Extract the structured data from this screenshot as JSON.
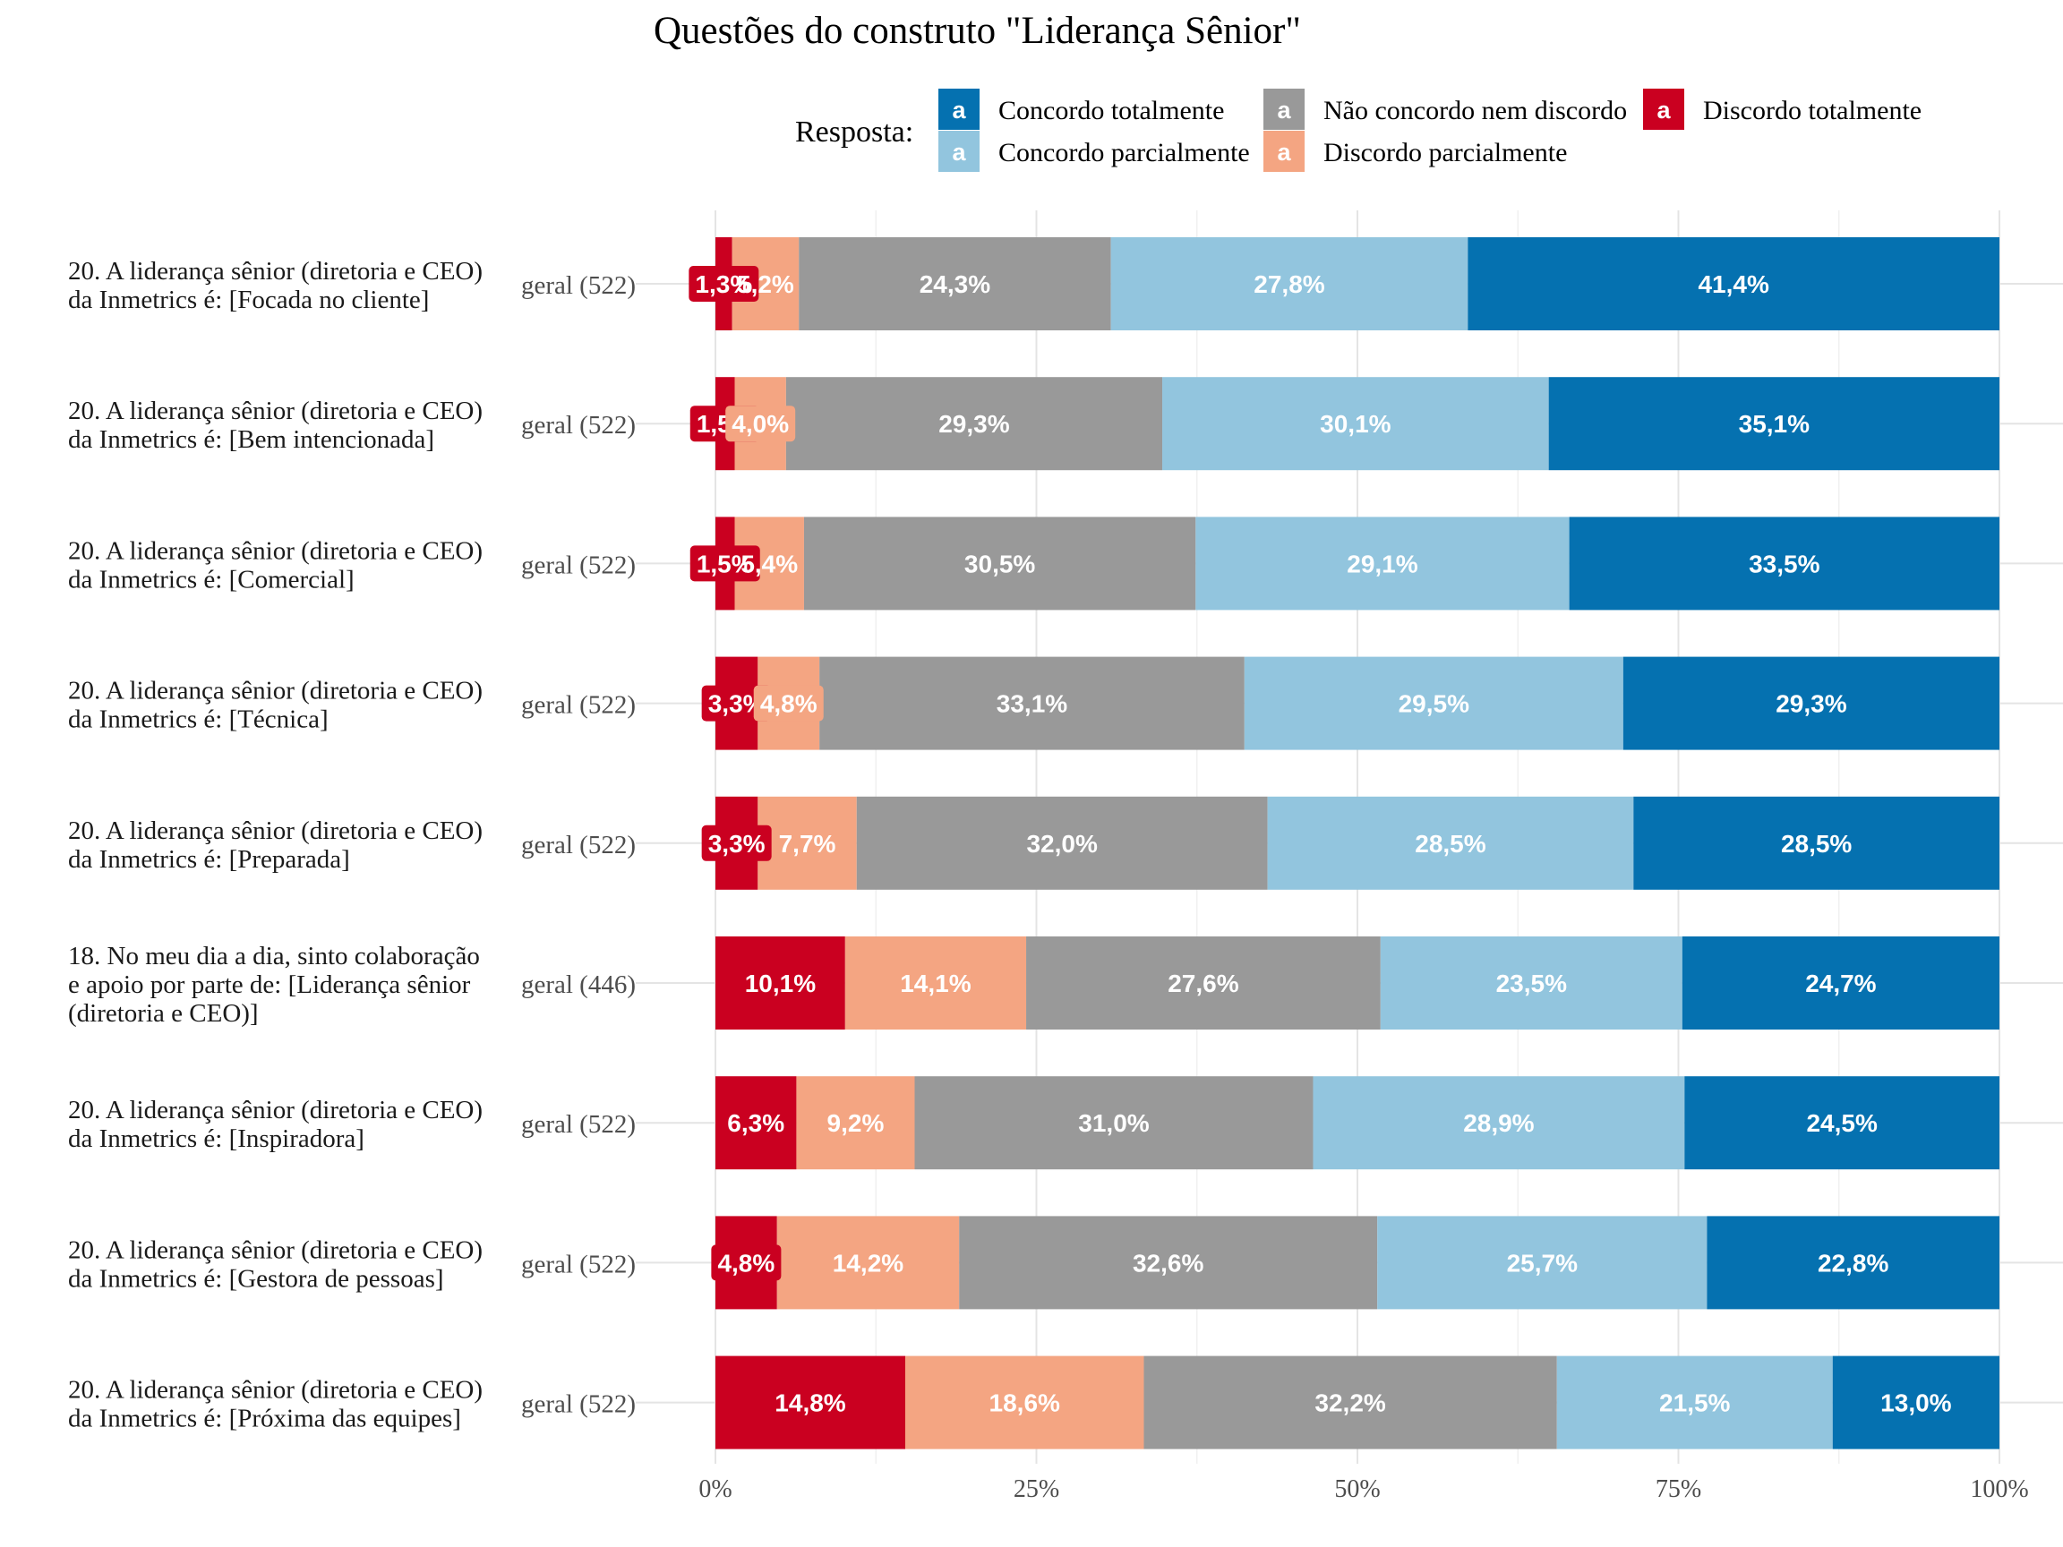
{
  "chart_data": {
    "type": "bar",
    "orientation": "horizontal",
    "stacked": true,
    "title": "Questões do construto \"Liderança Sênior\"",
    "legend": {
      "title": "Resposta:",
      "position": "top",
      "key_glyph": "a",
      "entries": [
        {
          "name": "Concordo totalmente",
          "color": "#0571b0"
        },
        {
          "name": "Concordo parcialmente",
          "color": "#92c5de"
        },
        {
          "name": "Não concordo nem discordo",
          "color": "#999999"
        },
        {
          "name": "Discordo parcialmente",
          "color": "#f4a582"
        },
        {
          "name": "Discordo totalmente",
          "color": "#ca0020"
        }
      ]
    },
    "stack_order": [
      "Discordo totalmente",
      "Discordo parcialmente",
      "Não concordo nem discordo",
      "Concordo parcialmente",
      "Concordo totalmente"
    ],
    "xlim": [
      0,
      100
    ],
    "x_ticks": [
      0,
      25,
      50,
      75,
      100
    ],
    "x_tick_labels": [
      "0%",
      "25%",
      "50%",
      "75%",
      "100%"
    ],
    "grid": true,
    "rows": [
      {
        "question": [
          "20. A liderança sênior (diretoria e CEO)",
          "da Inmetrics é: [Focada no cliente]"
        ],
        "group": "geral (522)",
        "values": [
          1.3,
          5.2,
          24.3,
          27.8,
          41.4
        ],
        "labels": [
          "1,3%",
          "5,2%",
          "24,3%",
          "27,8%",
          "41,4%"
        ]
      },
      {
        "question": [
          "20. A liderança sênior (diretoria e CEO)",
          "da Inmetrics é: [Bem intencionada]"
        ],
        "group": "geral (522)",
        "values": [
          1.5,
          4.0,
          29.3,
          30.1,
          35.1
        ],
        "labels": [
          "1,5%",
          "4,0%",
          "29,3%",
          "30,1%",
          "35,1%"
        ]
      },
      {
        "question": [
          "20. A liderança sênior (diretoria e CEO)",
          "da Inmetrics é: [Comercial]"
        ],
        "group": "geral (522)",
        "values": [
          1.5,
          5.4,
          30.5,
          29.1,
          33.5
        ],
        "labels": [
          "1,5%",
          "5,4%",
          "30,5%",
          "29,1%",
          "33,5%"
        ]
      },
      {
        "question": [
          "20. A liderança sênior (diretoria e CEO)",
          "da Inmetrics é: [Técnica]"
        ],
        "group": "geral (522)",
        "values": [
          3.3,
          4.8,
          33.1,
          29.5,
          29.3
        ],
        "labels": [
          "3,3%",
          "4,8%",
          "33,1%",
          "29,5%",
          "29,3%"
        ]
      },
      {
        "question": [
          "20. A liderança sênior (diretoria e CEO)",
          "da Inmetrics é: [Preparada]"
        ],
        "group": "geral (522)",
        "values": [
          3.3,
          7.7,
          32.0,
          28.5,
          28.5
        ],
        "labels": [
          "3,3%",
          "7,7%",
          "32,0%",
          "28,5%",
          "28,5%"
        ]
      },
      {
        "question": [
          "18. No meu dia a dia, sinto colaboração",
          "e apoio por parte de: [Liderança sênior",
          "(diretoria e CEO)]"
        ],
        "group": "geral (446)",
        "values": [
          10.1,
          14.1,
          27.6,
          23.5,
          24.7
        ],
        "labels": [
          "10,1%",
          "14,1%",
          "27,6%",
          "23,5%",
          "24,7%"
        ]
      },
      {
        "question": [
          "20. A liderança sênior (diretoria e CEO)",
          "da Inmetrics é: [Inspiradora]"
        ],
        "group": "geral (522)",
        "values": [
          6.3,
          9.2,
          31.0,
          28.9,
          24.5
        ],
        "labels": [
          "6,3%",
          "9,2%",
          "31,0%",
          "28,9%",
          "24,5%"
        ]
      },
      {
        "question": [
          "20. A liderança sênior (diretoria e CEO)",
          "da Inmetrics é: [Gestora de pessoas]"
        ],
        "group": "geral (522)",
        "values": [
          4.8,
          14.2,
          32.6,
          25.7,
          22.8
        ],
        "labels": [
          "4,8%",
          "14,2%",
          "32,6%",
          "25,7%",
          "22,8%"
        ]
      },
      {
        "question": [
          "20. A liderança sênior (diretoria e CEO)",
          "da Inmetrics é: [Próxima das equipes]"
        ],
        "group": "geral (522)",
        "values": [
          14.8,
          18.6,
          32.2,
          21.5,
          13.0
        ],
        "labels": [
          "14,8%",
          "18,6%",
          "32,2%",
          "21,5%",
          "13,0%"
        ]
      }
    ]
  }
}
